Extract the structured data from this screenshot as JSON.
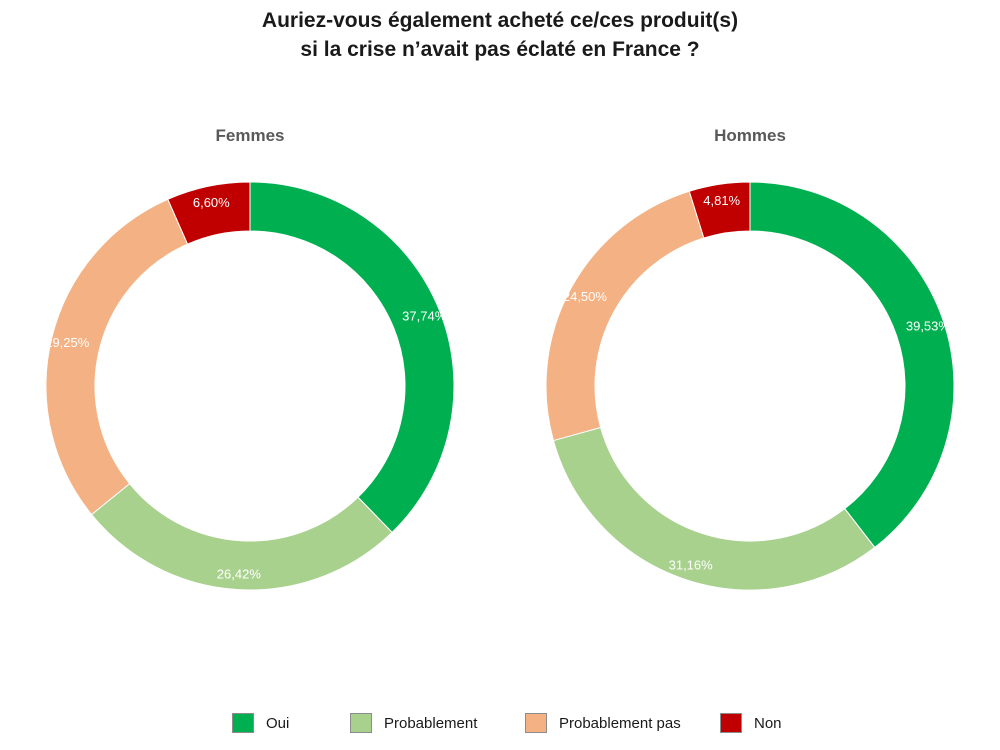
{
  "title_line1": "Auriez-vous également acheté ce/ces produit(s)",
  "title_line2": "si la crise n’avait pas éclaté en France ?",
  "chart_data": [
    {
      "type": "pie",
      "subtype": "donut",
      "title": "Femmes",
      "categories": [
        "Oui",
        "Probablement",
        "Probablement pas",
        "Non"
      ],
      "values": [
        37.74,
        26.42,
        29.25,
        6.6
      ],
      "labels": [
        "37,74%",
        "26,42%",
        "29,25%",
        "6,60%"
      ],
      "colors": [
        "#00b050",
        "#a9d18e",
        "#f4b183",
        "#c00000"
      ]
    },
    {
      "type": "pie",
      "subtype": "donut",
      "title": "Hommes",
      "categories": [
        "Oui",
        "Probablement",
        "Probablement pas",
        "Non"
      ],
      "values": [
        39.53,
        31.16,
        24.5,
        4.81
      ],
      "labels": [
        "39,53%",
        "31,16%",
        "24,50%",
        "4,81%"
      ],
      "colors": [
        "#00b050",
        "#a9d18e",
        "#f4b183",
        "#c00000"
      ]
    }
  ],
  "legend": {
    "position": "bottom",
    "items": [
      {
        "label": "Oui",
        "color": "#00b050"
      },
      {
        "label": "Probablement",
        "color": "#a9d18e"
      },
      {
        "label": "Probablement pas",
        "color": "#f4b183"
      },
      {
        "label": "Non",
        "color": "#c00000"
      }
    ]
  }
}
